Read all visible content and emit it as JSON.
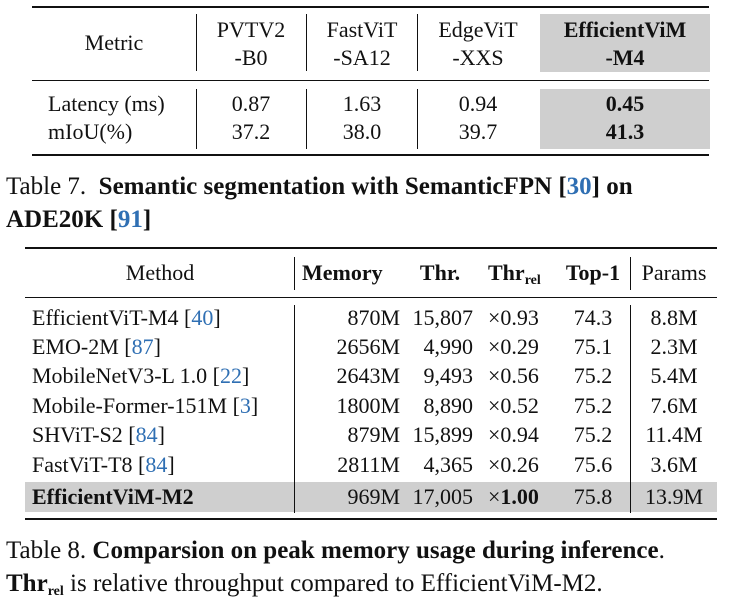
{
  "table7": {
    "header": {
      "metric": "Metric",
      "cols": [
        {
          "line1": "PVTV2",
          "line2": "-B0"
        },
        {
          "line1": "FastViT",
          "line2": "-SA12"
        },
        {
          "line1": "EdgeViT",
          "line2": "-XXS"
        },
        {
          "line1": "EfficientViM",
          "line2": "-M4"
        }
      ]
    },
    "rows": [
      {
        "label": "Latency (ms)",
        "values": [
          "0.87",
          "1.63",
          "0.94",
          "0.45"
        ]
      },
      {
        "label": "mIoU(%)",
        "values": [
          "37.2",
          "38.0",
          "39.7",
          "41.3"
        ]
      }
    ],
    "caption": {
      "prefix": "Table 7.",
      "bold_text": "Semantic segmentation with SemanticFPN [",
      "cite1": "30",
      "mid": "] on",
      "line2_bold": "ADE20K [",
      "cite2": "91",
      "end": "]"
    }
  },
  "table8": {
    "header": {
      "method": "Method",
      "memory": "Memory",
      "thr": "Thr.",
      "thr_rel_main": "Thr",
      "thr_rel_sub": "rel",
      "top1": "Top-1",
      "params": "Params"
    },
    "rows": [
      {
        "method": "EfficientViT-M4 [",
        "cite": "40",
        "close": "]",
        "memory": "870M",
        "thr": "15,807",
        "rel": "×0.93",
        "top1": "74.3",
        "params": "8.8M"
      },
      {
        "method": "EMO-2M [",
        "cite": "87",
        "close": "]",
        "memory": "2656M",
        "thr": "4,990",
        "rel": "×0.29",
        "top1": "75.1",
        "params": "2.3M"
      },
      {
        "method": "MobileNetV3-L 1.0 [",
        "cite": "22",
        "close": "]",
        "memory": "2643M",
        "thr": "9,493",
        "rel": "×0.56",
        "top1": "75.2",
        "params": "5.4M"
      },
      {
        "method": "Mobile-Former-151M [",
        "cite": "3",
        "close": "]",
        "memory": "1800M",
        "thr": "8,890",
        "rel": "×0.52",
        "top1": "75.2",
        "params": "7.6M"
      },
      {
        "method": "SHViT-S2 [",
        "cite": "84",
        "close": "]",
        "memory": "879M",
        "thr": "15,899",
        "rel": "×0.94",
        "top1": "75.2",
        "params": "11.4M"
      },
      {
        "method": "FastViT-T8 [",
        "cite": "84",
        "close": "]",
        "memory": "2811M",
        "thr": "4,365",
        "rel": "×0.26",
        "top1": "75.6",
        "params": "3.6M"
      }
    ],
    "highlight": {
      "method": "EfficientViM-M2",
      "memory": "969M",
      "thr": "17,005",
      "rel_x": "×",
      "rel_val": "1.00",
      "top1": "75.8",
      "params": "13.9M"
    },
    "caption": {
      "prefix": "Table 8.",
      "bold_text": "Comparsion on peak memory usage during inference",
      "period": ".",
      "line2_bold": "Thr",
      "line2_sub": "rel",
      "line2_rest": " is relative throughput compared to EfficientViM-M2."
    }
  }
}
